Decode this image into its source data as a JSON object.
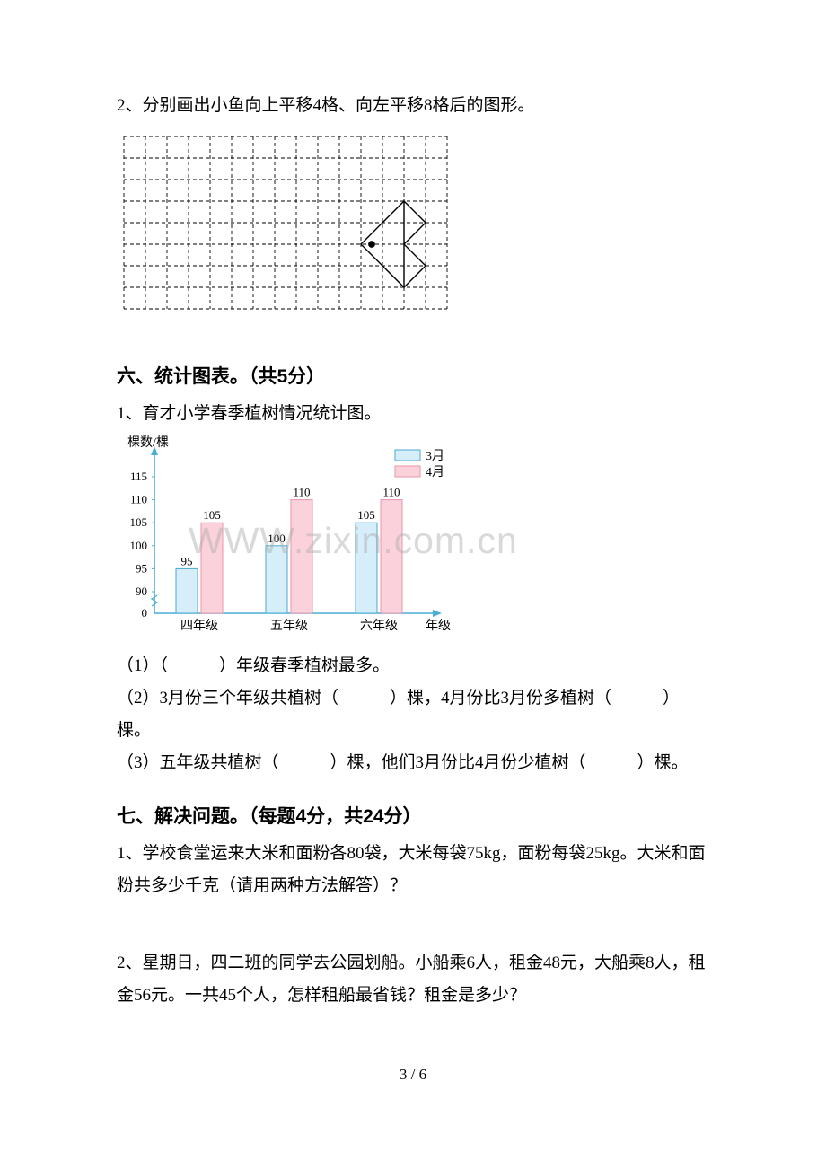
{
  "q2": {
    "text": "2、分别画出小鱼向上平移4格、向左平移8格后的图形。",
    "grid": {
      "cols": 15,
      "rows": 8,
      "cell": 24
    },
    "fish": {
      "eye": [
        11.5,
        5
      ],
      "body": [
        [
          11,
          5
        ],
        [
          13,
          3
        ],
        [
          13,
          7
        ]
      ],
      "tail": [
        [
          13,
          3
        ],
        [
          14,
          4
        ],
        [
          13,
          5
        ],
        [
          14,
          6
        ],
        [
          13,
          7
        ]
      ]
    }
  },
  "section6": {
    "heading": "六、统计图表。（共5分）",
    "q1_intro": "1、育才小学春季植树情况统计图。",
    "axis_y_label": "棵数/棵",
    "axis_x_label": "年级",
    "legend": {
      "march": "3月",
      "april": "4月"
    },
    "colors": {
      "march_fill": "#d6eef9",
      "march_stroke": "#4aa9d3",
      "april_fill": "#fbd2dc",
      "april_stroke": "#e994aa",
      "axis": "#49aed5",
      "text": "#000000"
    },
    "y_ticks": [
      0,
      90,
      95,
      100,
      105,
      110,
      115
    ],
    "categories": [
      "四年级",
      "五年级",
      "六年级"
    ],
    "march_values": [
      95,
      100,
      105
    ],
    "april_values": [
      105,
      110,
      110
    ],
    "bar_labels": [
      "95",
      "105",
      "100",
      "110",
      "105",
      "110"
    ],
    "font_label": 14,
    "sub_q1": "（1）（　　　）年级春季植树最多。",
    "sub_q2": "（2）3月份三个年级共植树（　　　）棵，4月份比3月份多植树（　　　）棵。",
    "sub_q3": "（3）五年级共植树（　　　）棵，他们3月份比4月份少植树（　　　）棵。"
  },
  "section7": {
    "heading": "七、解决问题。（每题4分，共24分）",
    "q1": "1、学校食堂运来大米和面粉各80袋，大米每袋75kg，面粉每袋25kg。大米和面粉共多少千克（请用两种方法解答）？",
    "q2": "2、星期日，四二班的同学去公园划船。小船乘6人，租金48元，大船乘8人，租金56元。一共45个人，怎样租船最省钱？租金是多少？"
  },
  "watermark": "WWW.zixin.com.cn",
  "page_num": "3 / 6"
}
